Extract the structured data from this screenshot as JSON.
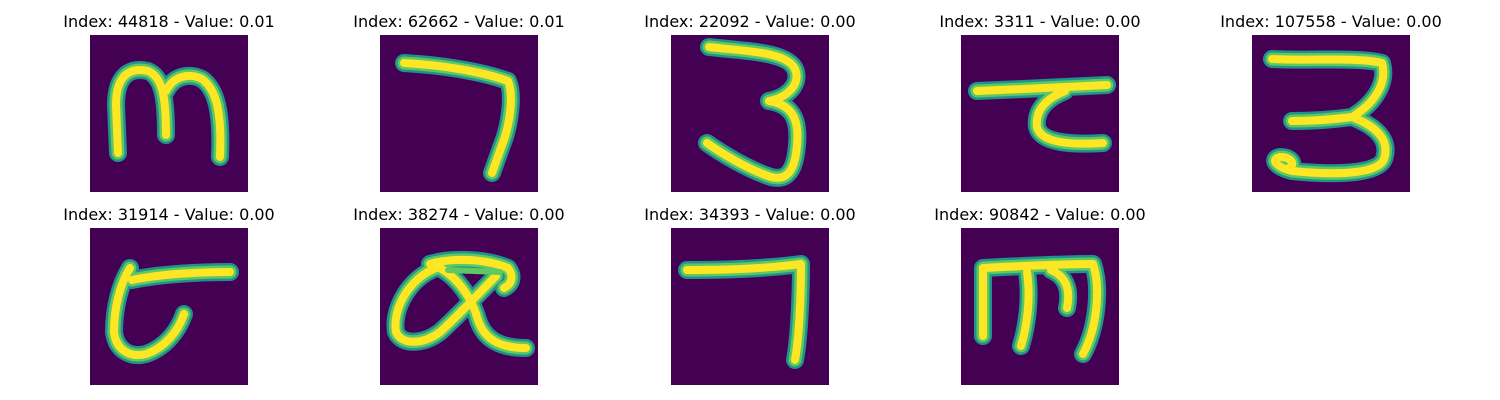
{
  "colors": {
    "background": "#440154",
    "stroke_core": "#fde725",
    "stroke_mid": "#5ec962",
    "stroke_edge": "#21918c"
  },
  "panels": [
    {
      "title": "Index: 44818 - Value: 0.01",
      "glyph": "m-shape"
    },
    {
      "title": "Index: 62662 - Value: 0.01",
      "glyph": "seven-shape"
    },
    {
      "title": "Index: 22092 - Value: 0.00",
      "glyph": "three-shape"
    },
    {
      "title": "Index: 3311 - Value: 0.00",
      "glyph": "hook-shape"
    },
    {
      "title": "Index: 107558 - Value: 0.00",
      "glyph": "three-looped-shape"
    },
    {
      "title": "Index: 31914 - Value: 0.00",
      "glyph": "loop-t-shape"
    },
    {
      "title": "Index: 38274 - Value: 0.00",
      "glyph": "alpha-c-shape"
    },
    {
      "title": "Index: 34393 - Value: 0.00",
      "glyph": "seven-angular-shape"
    },
    {
      "title": "Index: 90842 - Value: 0.00",
      "glyph": "m-flat-shape"
    }
  ]
}
